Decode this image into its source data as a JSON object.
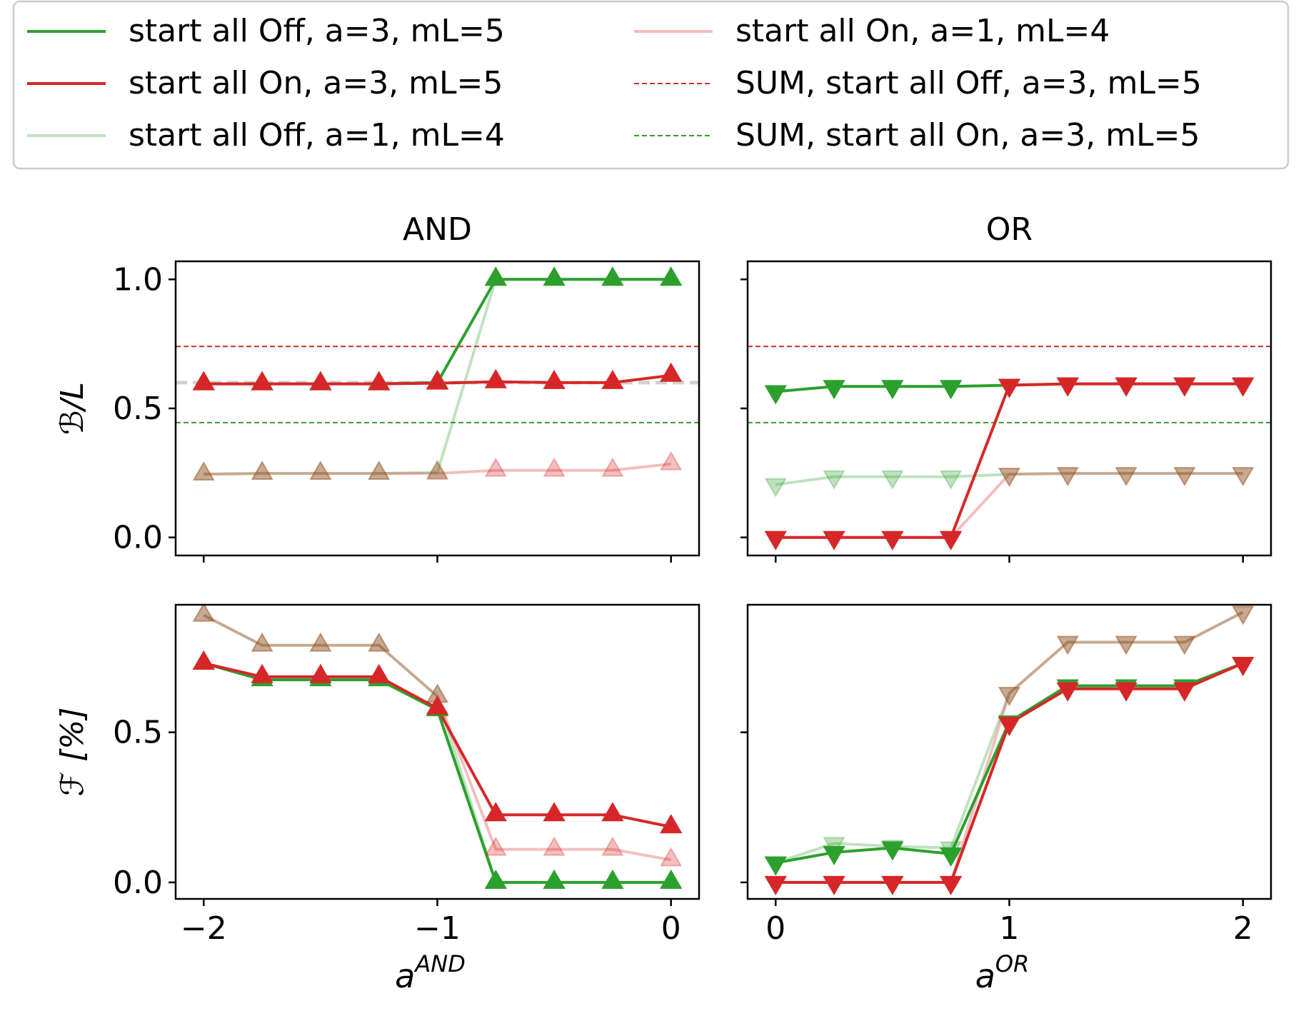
{
  "colors": {
    "green": "#2ca02c",
    "red": "#d62728",
    "green_light": "#bfe3bd",
    "red_light": "#f1b9b9",
    "overlap_brown": "#c0a584",
    "gray_ref": "#cccccc"
  },
  "legend": {
    "entries": [
      {
        "label": "start all Off, a=3, mL=5",
        "style": "solid",
        "color": "#2ca02c",
        "alpha": 1.0
      },
      {
        "label": "start all On, a=3, mL=5",
        "style": "solid",
        "color": "#d62728",
        "alpha": 1.0
      },
      {
        "label": "start all Off, a=1, mL=4",
        "style": "solid",
        "color": "#2ca02c",
        "alpha": 0.3
      },
      {
        "label": "start all On, a=1, mL=4",
        "style": "solid",
        "color": "#d62728",
        "alpha": 0.3
      },
      {
        "label": "SUM, start all Off, a=3, mL=5",
        "style": "dashed",
        "color": "#d62728",
        "alpha": 1.0
      },
      {
        "label": "SUM, start all On, a=3, mL=5",
        "style": "dashed",
        "color": "#2ca02c",
        "alpha": 1.0
      }
    ]
  },
  "chart_data": [
    {
      "id": "and-top",
      "type": "line",
      "title": "AND",
      "ylabel_main": "ℬ",
      "ylabel_rest": "/L",
      "xlim": [
        -2.12,
        0.12
      ],
      "ylim": [
        -0.07,
        1.07
      ],
      "xticks": [
        -2,
        -1,
        0
      ],
      "xticklabels": [
        "−2",
        "−1",
        "0"
      ],
      "show_xticklabels": false,
      "yticks": [
        0.0,
        0.5,
        1.0
      ],
      "yticklabels": [
        "0.0",
        "0.5",
        "1.0"
      ],
      "show_yticklabels": true,
      "marker": "triangle-up",
      "hlines": [
        {
          "y": 0.74,
          "color": "#d62728",
          "style": "dashed"
        },
        {
          "y": 0.445,
          "color": "#2ca02c",
          "style": "dashed"
        },
        {
          "y": 0.6,
          "color": "#cccccc",
          "style": "gray"
        }
      ],
      "x": [
        -2,
        -1.75,
        -1.5,
        -1.25,
        -1,
        -0.75,
        -0.5,
        -0.25,
        0
      ],
      "series": [
        {
          "name": "start all Off, a=1, mL=4",
          "color": "#2ca02c",
          "alpha": 0.3,
          "values": [
            0.245,
            0.248,
            0.248,
            0.248,
            0.252,
            1.0,
            1.0,
            1.0,
            1.0
          ]
        },
        {
          "name": "start all On, a=1, mL=4",
          "color": "#d62728",
          "alpha": 0.3,
          "values": [
            0.245,
            0.248,
            0.248,
            0.248,
            0.248,
            0.26,
            0.26,
            0.26,
            0.285
          ]
        },
        {
          "name": "start all Off, a=3, mL=5",
          "color": "#2ca02c",
          "alpha": 1.0,
          "values": [
            0.595,
            0.595,
            0.595,
            0.595,
            0.6,
            1.0,
            1.0,
            1.0,
            1.0
          ]
        },
        {
          "name": "start all On, a=3, mL=5",
          "color": "#d62728",
          "alpha": 1.0,
          "values": [
            0.595,
            0.595,
            0.595,
            0.595,
            0.598,
            0.603,
            0.6,
            0.6,
            0.628
          ]
        }
      ]
    },
    {
      "id": "or-top",
      "type": "line",
      "title": "OR",
      "xlim": [
        -0.12,
        2.12
      ],
      "ylim": [
        -0.07,
        1.07
      ],
      "xticks": [
        0,
        1,
        2
      ],
      "xticklabels": [
        "0",
        "1",
        "2"
      ],
      "show_xticklabels": false,
      "yticks": [
        0.0,
        0.5,
        1.0
      ],
      "yticklabels": [
        "0.0",
        "0.5",
        "1.0"
      ],
      "show_yticklabels": false,
      "marker": "triangle-down",
      "hlines": [
        {
          "y": 0.74,
          "color": "#d62728",
          "style": "dashed"
        },
        {
          "y": 0.445,
          "color": "#2ca02c",
          "style": "dashed"
        }
      ],
      "x": [
        0,
        0.25,
        0.5,
        0.75,
        1,
        1.25,
        1.5,
        1.75,
        2
      ],
      "series": [
        {
          "name": "start all Off, a=1, mL=4",
          "color": "#2ca02c",
          "alpha": 0.3,
          "values": [
            0.205,
            0.235,
            0.235,
            0.235,
            0.245,
            0.248,
            0.248,
            0.248,
            0.248
          ]
        },
        {
          "name": "start all On, a=1, mL=4",
          "color": "#d62728",
          "alpha": 0.3,
          "values": [
            0.0,
            0.0,
            0.0,
            0.0,
            0.245,
            0.248,
            0.248,
            0.248,
            0.248
          ]
        },
        {
          "name": "start all Off, a=3, mL=5",
          "color": "#2ca02c",
          "alpha": 1.0,
          "values": [
            0.565,
            0.585,
            0.585,
            0.585,
            0.59,
            0.595,
            0.595,
            0.595,
            0.595
          ]
        },
        {
          "name": "start all On, a=3, mL=5",
          "color": "#d62728",
          "alpha": 1.0,
          "values": [
            0.0,
            0.0,
            0.0,
            0.0,
            0.59,
            0.595,
            0.595,
            0.595,
            0.595
          ]
        }
      ]
    },
    {
      "id": "and-bottom",
      "type": "line",
      "ylabel_main": "ℱ",
      "ylabel_rest": " [%]",
      "xlabel_base": "a",
      "xlabel_sup": "AND",
      "xlim": [
        -2.12,
        0.12
      ],
      "ylim": [
        -0.055,
        0.925
      ],
      "xticks": [
        -2,
        -1,
        0
      ],
      "xticklabels": [
        "−2",
        "−1",
        "0"
      ],
      "show_xticklabels": true,
      "yticks": [
        0.0,
        0.5
      ],
      "yticklabels": [
        "0.0",
        "0.5"
      ],
      "show_yticklabels": true,
      "marker": "triangle-up",
      "hlines": [],
      "x": [
        -2,
        -1.75,
        -1.5,
        -1.25,
        -1,
        -0.75,
        -0.5,
        -0.25,
        0
      ],
      "series": [
        {
          "name": "start all Off, a=1, mL=4",
          "color": "#2ca02c",
          "alpha": 0.3,
          "values": [
            0.89,
            0.79,
            0.79,
            0.79,
            0.62,
            0.0,
            0.0,
            0.0,
            0.0
          ]
        },
        {
          "name": "start all On, a=1, mL=4",
          "color": "#d62728",
          "alpha": 0.3,
          "values": [
            0.89,
            0.79,
            0.79,
            0.79,
            0.62,
            0.11,
            0.11,
            0.11,
            0.075
          ]
        },
        {
          "name": "start all Off, a=3, mL=5",
          "color": "#2ca02c",
          "alpha": 1.0,
          "values": [
            0.73,
            0.675,
            0.675,
            0.675,
            0.575,
            0.0,
            0.0,
            0.0,
            0.0
          ]
        },
        {
          "name": "start all On, a=3, mL=5",
          "color": "#d62728",
          "alpha": 1.0,
          "values": [
            0.73,
            0.685,
            0.685,
            0.685,
            0.58,
            0.225,
            0.225,
            0.225,
            0.185
          ]
        }
      ]
    },
    {
      "id": "or-bottom",
      "type": "line",
      "xlabel_base": "a",
      "xlabel_sup": "OR",
      "xlim": [
        -0.12,
        2.12
      ],
      "ylim": [
        -0.055,
        0.925
      ],
      "xticks": [
        0,
        1,
        2
      ],
      "xticklabels": [
        "0",
        "1",
        "2"
      ],
      "show_xticklabels": true,
      "yticks": [
        0.0,
        0.5
      ],
      "yticklabels": [
        "0.0",
        "0.5"
      ],
      "show_yticklabels": false,
      "marker": "triangle-down",
      "hlines": [],
      "x": [
        0,
        0.25,
        0.5,
        0.75,
        1,
        1.25,
        1.5,
        1.75,
        2
      ],
      "series": [
        {
          "name": "start all Off, a=1, mL=4",
          "color": "#2ca02c",
          "alpha": 0.3,
          "values": [
            0.065,
            0.13,
            0.12,
            0.115,
            0.63,
            0.8,
            0.8,
            0.8,
            0.9
          ]
        },
        {
          "name": "start all On, a=1, mL=4",
          "color": "#d62728",
          "alpha": 0.3,
          "values": [
            0.0,
            0.0,
            0.0,
            0.0,
            0.63,
            0.8,
            0.8,
            0.8,
            0.9
          ]
        },
        {
          "name": "start all Off, a=3, mL=5",
          "color": "#2ca02c",
          "alpha": 1.0,
          "values": [
            0.065,
            0.1,
            0.115,
            0.095,
            0.535,
            0.655,
            0.655,
            0.655,
            0.73
          ]
        },
        {
          "name": "start all On, a=3, mL=5",
          "color": "#d62728",
          "alpha": 1.0,
          "values": [
            0.0,
            0.0,
            0.0,
            0.0,
            0.53,
            0.645,
            0.645,
            0.645,
            0.73
          ]
        }
      ]
    }
  ]
}
